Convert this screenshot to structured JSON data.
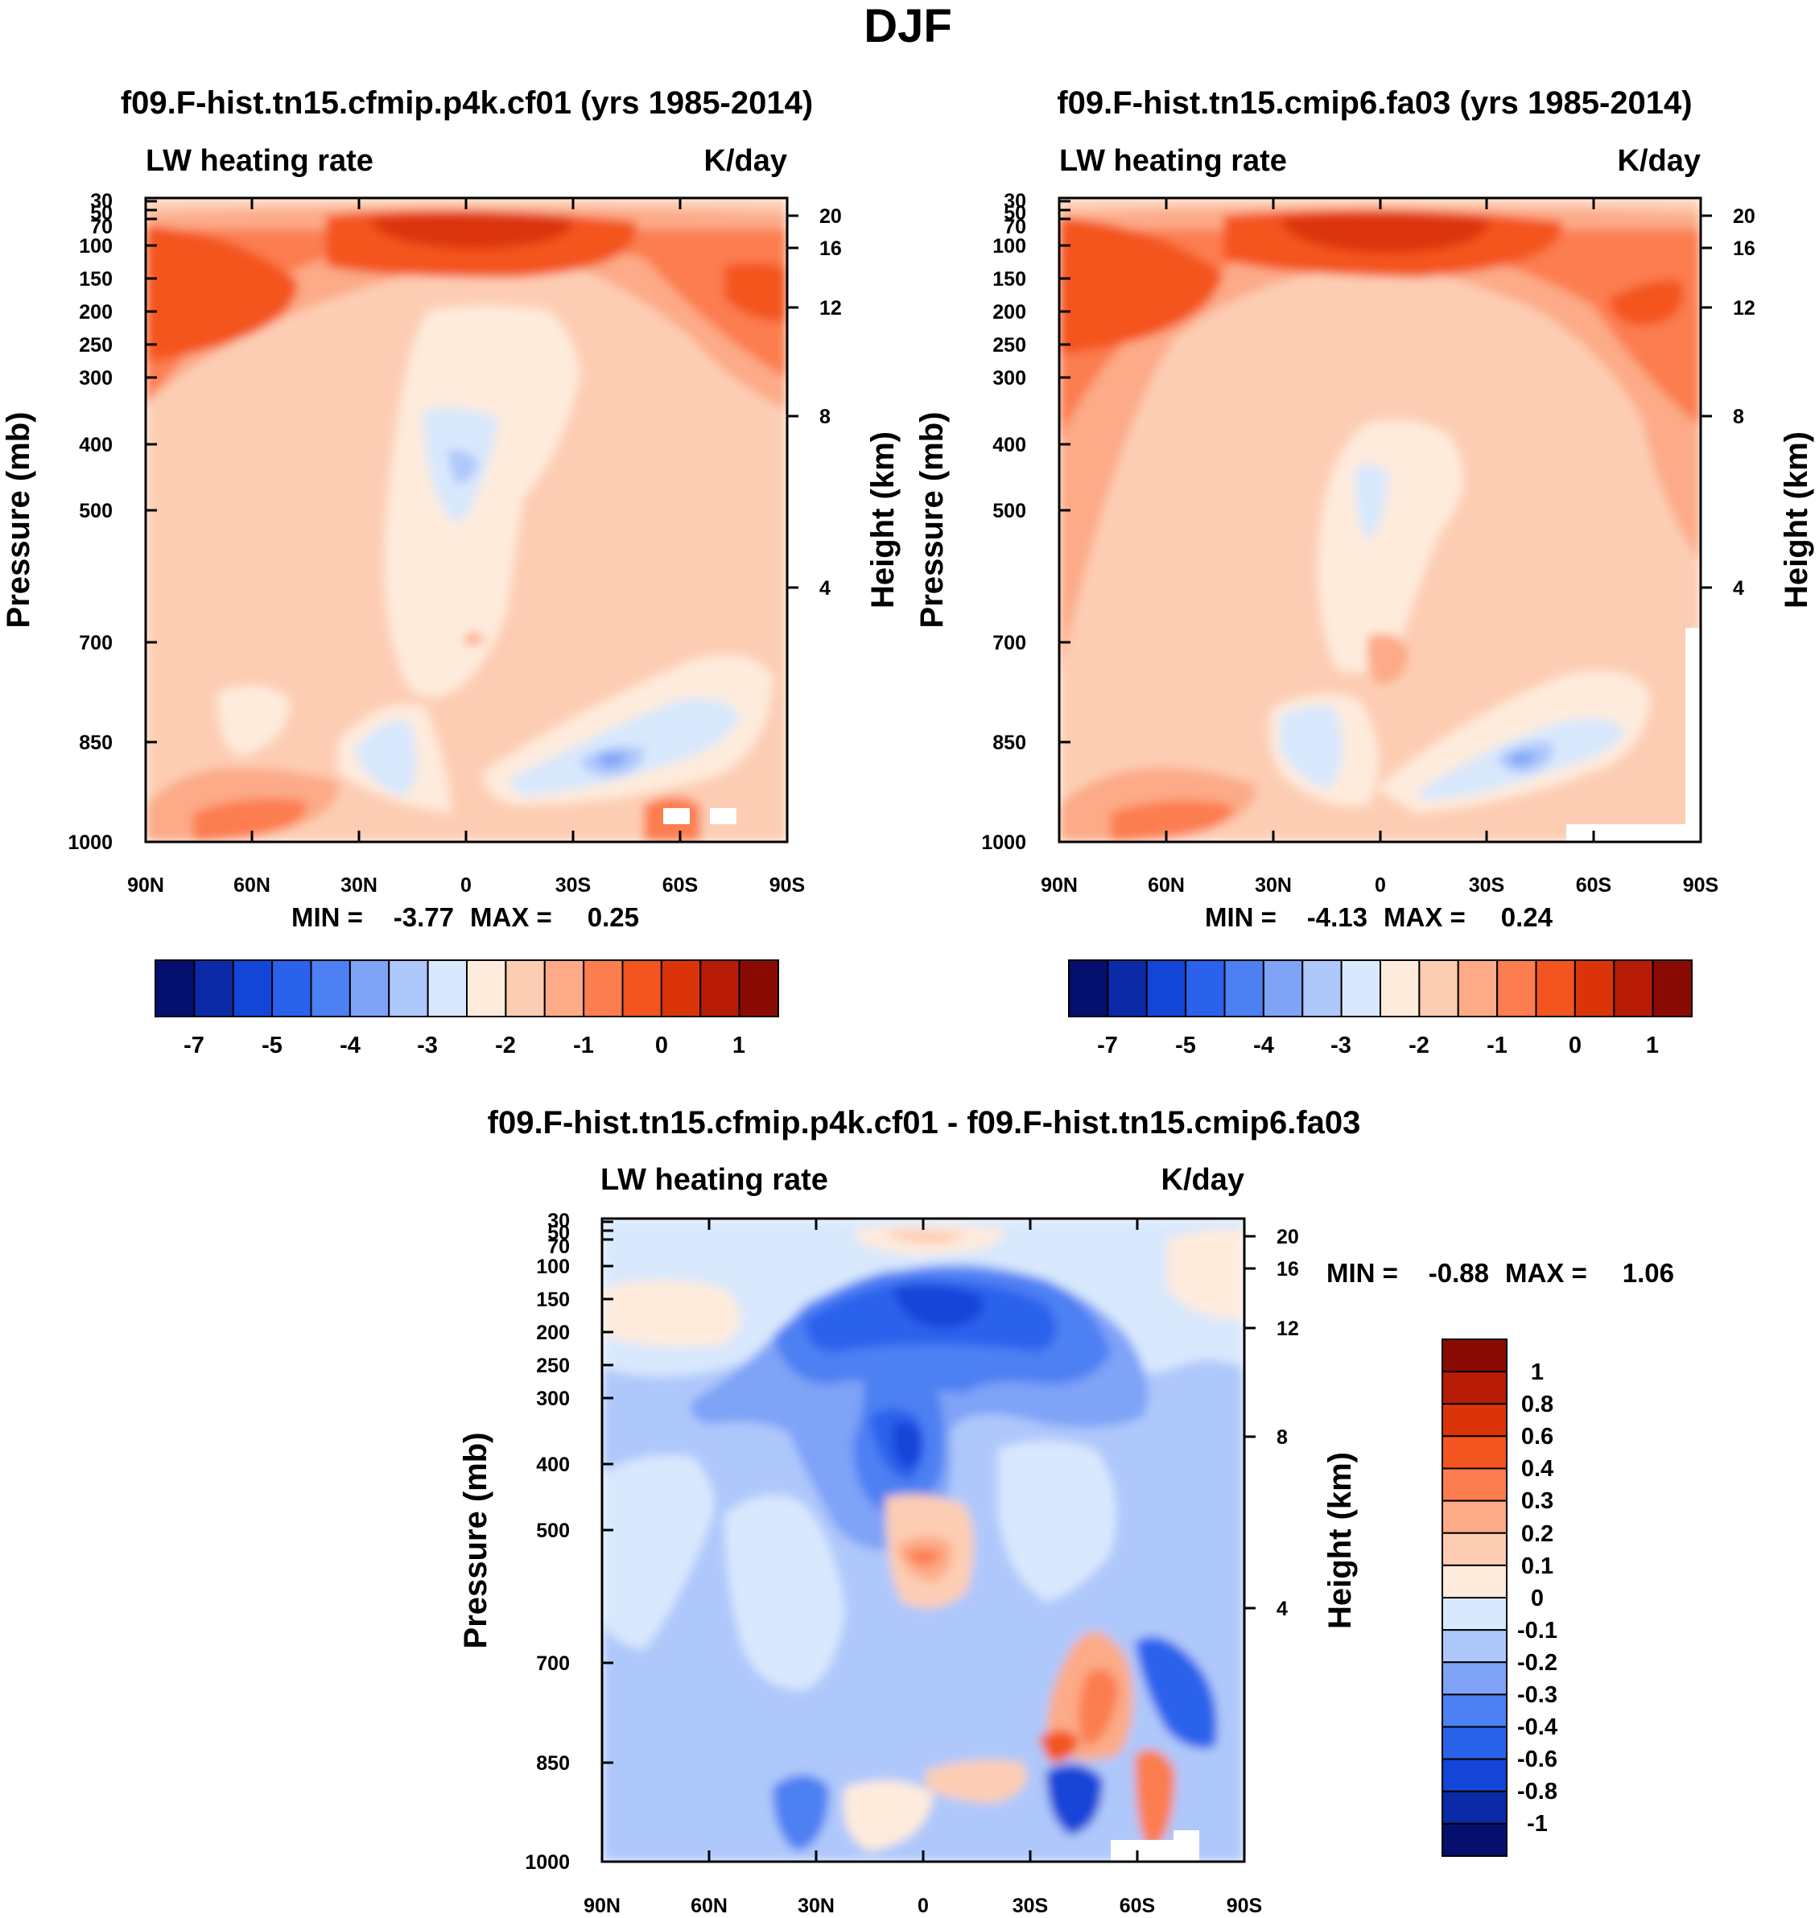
{
  "figure": {
    "season_title": "DJF"
  },
  "chart_data": [
    {
      "type": "heatmap",
      "title": "f09.F-hist.tn15.cfmip.p4k.cf01 (yrs 1985-2014)",
      "variable_label": "LW heating rate",
      "units_label": "K/day",
      "ylabel": "Pressure (mb)",
      "y2label": "Height (km)",
      "x_ticks": [
        "90N",
        "60N",
        "30N",
        "0",
        "30S",
        "60S",
        "90S"
      ],
      "y_ticks": [
        "30",
        "50",
        "70",
        "100",
        "150",
        "200",
        "250",
        "300",
        "400",
        "500",
        "700",
        "850",
        "1000"
      ],
      "y2_ticks": [
        "20",
        "16",
        "12",
        "8",
        "4"
      ],
      "min_label": "MIN =",
      "min_value": "-3.77",
      "max_label": "MAX =",
      "max_value": "0.25",
      "colorbar_labels": [
        "-7",
        "-5",
        "-4",
        "-3",
        "-2",
        "-1",
        "0",
        "1"
      ],
      "colorbar_colors": [
        "#05106e",
        "#0a2aa8",
        "#1245d8",
        "#2b62ec",
        "#4d80f3",
        "#7ea3f7",
        "#afc8fb",
        "#d8e8fd",
        "#feebdc",
        "#fdcdb3",
        "#fcaa87",
        "#fc7d4f",
        "#f4541f",
        "#dc3409",
        "#b71c06",
        "#8a0b03"
      ]
    },
    {
      "type": "heatmap",
      "title": "f09.F-hist.tn15.cmip6.fa03 (yrs 1985-2014)",
      "variable_label": "LW heating rate",
      "units_label": "K/day",
      "ylabel": "Pressure (mb)",
      "y2label": "Height (km)",
      "x_ticks": [
        "90N",
        "60N",
        "30N",
        "0",
        "30S",
        "60S",
        "90S"
      ],
      "y_ticks": [
        "30",
        "50",
        "70",
        "100",
        "150",
        "200",
        "250",
        "300",
        "400",
        "500",
        "700",
        "850",
        "1000"
      ],
      "y2_ticks": [
        "20",
        "16",
        "12",
        "8",
        "4"
      ],
      "min_label": "MIN =",
      "min_value": "-4.13",
      "max_label": "MAX =",
      "max_value": "0.24",
      "colorbar_labels": [
        "-7",
        "-5",
        "-4",
        "-3",
        "-2",
        "-1",
        "0",
        "1"
      ],
      "colorbar_colors": [
        "#05106e",
        "#0a2aa8",
        "#1245d8",
        "#2b62ec",
        "#4d80f3",
        "#7ea3f7",
        "#afc8fb",
        "#d8e8fd",
        "#feebdc",
        "#fdcdb3",
        "#fcaa87",
        "#fc7d4f",
        "#f4541f",
        "#dc3409",
        "#b71c06",
        "#8a0b03"
      ]
    },
    {
      "type": "heatmap",
      "title": "f09.F-hist.tn15.cfmip.p4k.cf01 - f09.F-hist.tn15.cmip6.fa03",
      "variable_label": "LW heating rate",
      "units_label": "K/day",
      "ylabel": "Pressure (mb)",
      "y2label": "Height (km)",
      "x_ticks": [
        "90N",
        "60N",
        "30N",
        "0",
        "30S",
        "60S",
        "90S"
      ],
      "y_ticks": [
        "30",
        "50",
        "70",
        "100",
        "150",
        "200",
        "250",
        "300",
        "400",
        "500",
        "700",
        "850",
        "1000"
      ],
      "y2_ticks": [
        "20",
        "16",
        "12",
        "8",
        "4"
      ],
      "min_label": "MIN =",
      "min_value": "-0.88",
      "max_label": "MAX =",
      "max_value": "1.06",
      "colorbar_labels": [
        "1",
        "0.8",
        "0.6",
        "0.4",
        "0.3",
        "0.2",
        "0.1",
        "0",
        "-0.1",
        "-0.2",
        "-0.3",
        "-0.4",
        "-0.6",
        "-0.8",
        "-1"
      ],
      "colorbar_colors": [
        "#8a0b03",
        "#b71c06",
        "#dc3409",
        "#f4541f",
        "#fc7d4f",
        "#fcaa87",
        "#fdcdb3",
        "#feebdc",
        "#d8e8fd",
        "#afc8fb",
        "#7ea3f7",
        "#4d80f3",
        "#2b62ec",
        "#1245d8",
        "#0a2aa8",
        "#05106e"
      ]
    }
  ]
}
